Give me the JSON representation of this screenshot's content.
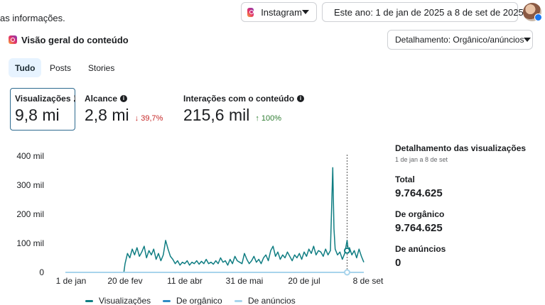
{
  "header": {
    "partial_text": "as informações.",
    "platform_label": "Instagram",
    "date_range_label": "Este ano: 1 de jan de 2025 a 8 de set de 2025"
  },
  "section": {
    "title": "Visão geral do conteúdo",
    "breakdown_label": "Detalhamento: Orgânico/anúncios"
  },
  "tabs": [
    {
      "label": "Tudo",
      "active": true
    },
    {
      "label": "Posts",
      "active": false
    },
    {
      "label": "Stories",
      "active": false
    }
  ],
  "metrics": [
    {
      "label": "Visualizações",
      "value": "9,8 mi",
      "change": "",
      "info": "i"
    },
    {
      "label": "Alcance",
      "value": "2,8 mi",
      "change": "39,7%",
      "change_arrow": "↓",
      "info": "i"
    },
    {
      "label": "Interações com o conteúdo",
      "value": "215,6 mil",
      "change": "100%",
      "change_arrow": "↑",
      "info": "i"
    }
  ],
  "chart_data": {
    "type": "line",
    "title": "",
    "x_tick_labels": [
      "1 de jan",
      "20 de fev",
      "11 de abr",
      "31 de mai",
      "20 de jul",
      "8 de set"
    ],
    "y_tick_labels": [
      "0",
      "100 mil",
      "200 mil",
      "300 mil",
      "400 mil"
    ],
    "ylim": [
      0,
      400000
    ],
    "x_range_days": [
      0,
      250
    ],
    "grid": false,
    "legend_position": "bottom",
    "highlight_day": 236,
    "series": [
      {
        "name": "Visualizações",
        "color": "#0f7d82",
        "points": [
          [
            0,
            0
          ],
          [
            30,
            0
          ],
          [
            49,
            0
          ],
          [
            50,
            30000
          ],
          [
            52,
            65000
          ],
          [
            54,
            50000
          ],
          [
            56,
            80000
          ],
          [
            58,
            60000
          ],
          [
            60,
            85000
          ],
          [
            62,
            55000
          ],
          [
            64,
            70000
          ],
          [
            66,
            90000
          ],
          [
            68,
            50000
          ],
          [
            70,
            75000
          ],
          [
            72,
            60000
          ],
          [
            74,
            80000
          ],
          [
            76,
            45000
          ],
          [
            78,
            65000
          ],
          [
            80,
            40000
          ],
          [
            82,
            60000
          ],
          [
            84,
            110000
          ],
          [
            86,
            80000
          ],
          [
            88,
            55000
          ],
          [
            90,
            45000
          ],
          [
            92,
            30000
          ],
          [
            94,
            40000
          ],
          [
            96,
            25000
          ],
          [
            98,
            35000
          ],
          [
            100,
            30000
          ],
          [
            102,
            40000
          ],
          [
            104,
            25000
          ],
          [
            106,
            35000
          ],
          [
            108,
            30000
          ],
          [
            110,
            40000
          ],
          [
            112,
            28000
          ],
          [
            114,
            38000
          ],
          [
            116,
            30000
          ],
          [
            118,
            45000
          ],
          [
            120,
            30000
          ],
          [
            122,
            35000
          ],
          [
            124,
            28000
          ],
          [
            126,
            40000
          ],
          [
            128,
            30000
          ],
          [
            130,
            50000
          ],
          [
            132,
            35000
          ],
          [
            134,
            40000
          ],
          [
            136,
            25000
          ],
          [
            138,
            45000
          ],
          [
            140,
            30000
          ],
          [
            142,
            55000
          ],
          [
            144,
            40000
          ],
          [
            146,
            35000
          ],
          [
            148,
            30000
          ],
          [
            150,
            65000
          ],
          [
            152,
            45000
          ],
          [
            154,
            30000
          ],
          [
            156,
            40000
          ],
          [
            158,
            55000
          ],
          [
            160,
            35000
          ],
          [
            162,
            45000
          ],
          [
            164,
            30000
          ],
          [
            166,
            50000
          ],
          [
            168,
            60000
          ],
          [
            170,
            40000
          ],
          [
            172,
            75000
          ],
          [
            174,
            90000
          ],
          [
            176,
            55000
          ],
          [
            178,
            70000
          ],
          [
            180,
            45000
          ],
          [
            182,
            60000
          ],
          [
            184,
            50000
          ],
          [
            186,
            70000
          ],
          [
            188,
            55000
          ],
          [
            190,
            40000
          ],
          [
            192,
            60000
          ],
          [
            194,
            50000
          ],
          [
            196,
            65000
          ],
          [
            198,
            45000
          ],
          [
            200,
            70000
          ],
          [
            202,
            55000
          ],
          [
            204,
            80000
          ],
          [
            206,
            65000
          ],
          [
            208,
            90000
          ],
          [
            210,
            60000
          ],
          [
            212,
            75000
          ],
          [
            214,
            70000
          ],
          [
            216,
            55000
          ],
          [
            218,
            80000
          ],
          [
            220,
            60000
          ],
          [
            222,
            75000
          ],
          [
            224,
            360000
          ],
          [
            225,
            150000
          ],
          [
            226,
            80000
          ],
          [
            228,
            60000
          ],
          [
            230,
            70000
          ],
          [
            232,
            45000
          ],
          [
            234,
            65000
          ],
          [
            236,
            110000
          ],
          [
            237,
            75000
          ],
          [
            238,
            85000
          ],
          [
            240,
            60000
          ],
          [
            242,
            75000
          ],
          [
            244,
            50000
          ],
          [
            246,
            80000
          ],
          [
            248,
            55000
          ],
          [
            250,
            35000
          ]
        ]
      },
      {
        "name": "De orgânico",
        "color": "#2f8bc4",
        "points": []
      },
      {
        "name": "De anúncios",
        "color": "#a8d4ec",
        "points": [
          [
            0,
            0
          ],
          [
            250,
            0
          ]
        ]
      }
    ]
  },
  "side_panel": {
    "title": "Detalhamento das visualizações",
    "subtitle": "1 de jan a 8 de set",
    "items": [
      {
        "label": "Total",
        "value": "9.764.625"
      },
      {
        "label": "De orgânico",
        "value": "9.764.625"
      },
      {
        "label": "De anúncios",
        "value": "0"
      }
    ]
  }
}
